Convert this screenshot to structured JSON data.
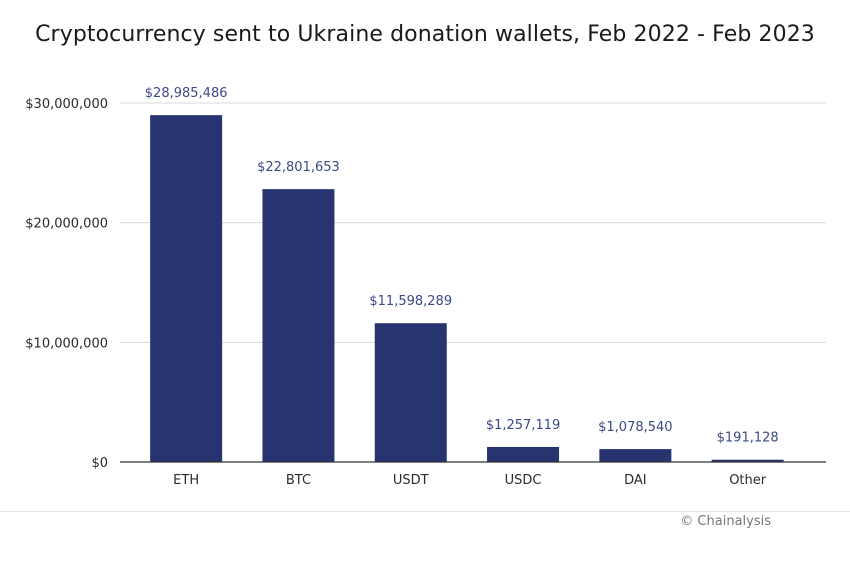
{
  "chart_data": {
    "type": "bar",
    "title": "Cryptocurrency sent to Ukraine donation wallets, Feb 2022 - Feb 2023",
    "categories": [
      "ETH",
      "BTC",
      "USDT",
      "USDC",
      "DAI",
      "Other"
    ],
    "values": [
      28985486,
      22801653,
      11598289,
      1257119,
      1078540,
      191128
    ],
    "data_labels": [
      "$28,985,486",
      "$22,801,653",
      "$11,598,289",
      "$1,257,119",
      "$1,078,540",
      "$191,128"
    ],
    "xlabel": "",
    "ylabel": "",
    "ylim": [
      0,
      30000000
    ],
    "yticks": [
      0,
      10000000,
      20000000,
      30000000
    ],
    "ytick_labels": [
      "$0",
      "$10,000,000",
      "$20,000,000",
      "$30,000,000"
    ],
    "grid": true,
    "legend": "none",
    "colors": {
      "bar": "#27346f",
      "data_label": "#3b4a86",
      "grid": "#d9d9d9",
      "axis": "#333333"
    }
  },
  "credit": "© Chainalysis"
}
